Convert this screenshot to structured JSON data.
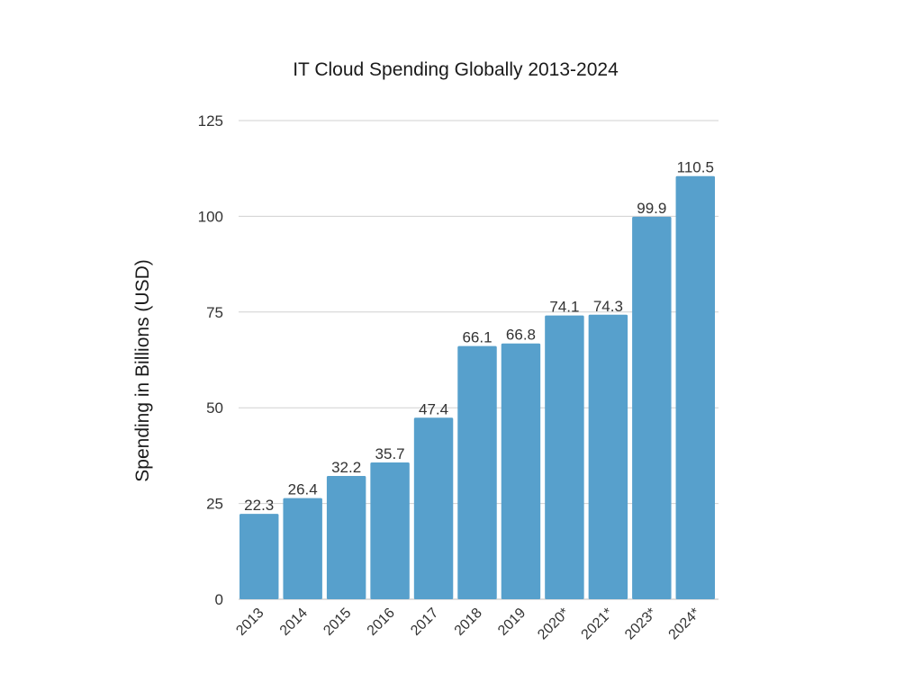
{
  "chart_data": {
    "type": "bar",
    "title": "IT Cloud Spending Globally 2013-2024",
    "xlabel": "",
    "ylabel": "Spending in Billions (USD)",
    "ylim": [
      0,
      125
    ],
    "yticks": [
      0,
      25,
      50,
      75,
      100,
      125
    ],
    "grid": true,
    "categories": [
      "2013",
      "2014",
      "2015",
      "2016",
      "2017",
      "2018",
      "2019",
      "2020*",
      "2021*",
      "2023*",
      "2024*"
    ],
    "values": [
      22.3,
      26.4,
      32.2,
      35.7,
      47.4,
      66.1,
      66.8,
      74.1,
      74.3,
      99.9,
      110.5
    ],
    "data_labels": [
      "22.3",
      "26.4",
      "32.2",
      "35.7",
      "47.4",
      "66.1",
      "66.8",
      "74.1",
      "74.3",
      "99.9",
      "110.5"
    ],
    "bar_color": "#57a0cc"
  }
}
